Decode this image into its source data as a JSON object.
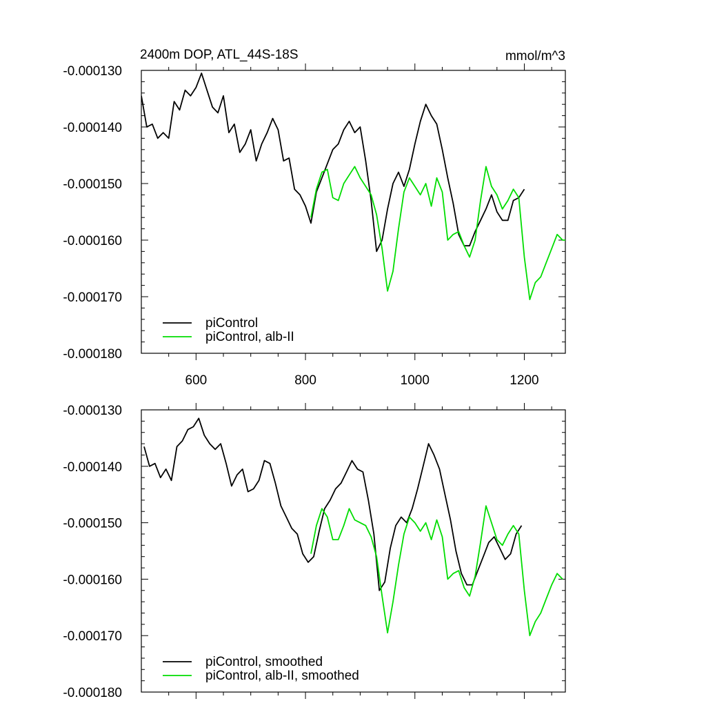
{
  "figure": {
    "title_left": "2400m DOP, ATL_44S-18S",
    "title_right": "mmol/m^3"
  },
  "chart_data": [
    {
      "type": "line",
      "panel": "top",
      "xlim": [
        500,
        1275
      ],
      "ylim": [
        -0.00018,
        -0.00013
      ],
      "x_ticks": [
        600,
        800,
        1000,
        1200
      ],
      "x_tick_labels": [
        "600",
        "800",
        "1000",
        "1200"
      ],
      "y_ticks": [
        -0.00013,
        -0.00014,
        -0.00015,
        -0.00016,
        -0.00017,
        -0.00018
      ],
      "y_tick_labels": [
        "-0.000130",
        "-0.000140",
        "-0.000150",
        "-0.000160",
        "-0.000170",
        "-0.000180"
      ],
      "grid": false,
      "legend_position": "bottom-left",
      "series": [
        {
          "name": "piControl",
          "color": "#000000",
          "x": [
            500,
            510,
            520,
            530,
            540,
            550,
            560,
            570,
            580,
            590,
            600,
            610,
            620,
            630,
            640,
            650,
            660,
            670,
            680,
            690,
            700,
            710,
            720,
            730,
            740,
            750,
            760,
            770,
            780,
            790,
            800,
            810,
            820,
            830,
            840,
            850,
            860,
            870,
            880,
            890,
            900,
            910,
            920,
            930,
            940,
            950,
            960,
            970,
            980,
            990,
            1000,
            1010,
            1020,
            1030,
            1040,
            1050,
            1060,
            1070,
            1080,
            1090,
            1100,
            1110,
            1120,
            1130,
            1140,
            1150,
            1160,
            1170,
            1180,
            1190,
            1200
          ],
          "y": [
            -0.0001345,
            -0.00014,
            -0.0001395,
            -0.000142,
            -0.000141,
            -0.000142,
            -0.0001355,
            -0.000137,
            -0.0001335,
            -0.0001345,
            -0.000133,
            -0.0001305,
            -0.0001335,
            -0.0001365,
            -0.0001375,
            -0.0001345,
            -0.000141,
            -0.0001395,
            -0.0001445,
            -0.000143,
            -0.0001405,
            -0.000146,
            -0.000143,
            -0.000141,
            -0.0001385,
            -0.0001405,
            -0.000146,
            -0.0001455,
            -0.000151,
            -0.000152,
            -0.000154,
            -0.000157,
            -0.0001515,
            -0.000149,
            -0.0001465,
            -0.000144,
            -0.000143,
            -0.0001405,
            -0.000139,
            -0.000141,
            -0.00014,
            -0.000146,
            -0.000153,
            -0.000162,
            -0.00016,
            -0.0001545,
            -0.00015,
            -0.000148,
            -0.0001505,
            -0.0001475,
            -0.000143,
            -0.000139,
            -0.000136,
            -0.000138,
            -0.0001395,
            -0.000144,
            -0.000149,
            -0.0001535,
            -0.000159,
            -0.000161,
            -0.000161,
            -0.0001585,
            -0.0001565,
            -0.0001545,
            -0.000152,
            -0.000155,
            -0.0001565,
            -0.0001565,
            -0.000153,
            -0.0001525,
            -0.000151
          ]
        },
        {
          "name": "piControl, alb-II",
          "color": "#00dd00",
          "x": [
            810,
            820,
            830,
            840,
            850,
            860,
            870,
            880,
            890,
            900,
            910,
            920,
            930,
            940,
            950,
            960,
            970,
            980,
            990,
            1000,
            1010,
            1020,
            1030,
            1040,
            1050,
            1060,
            1070,
            1080,
            1090,
            1100,
            1110,
            1120,
            1130,
            1140,
            1150,
            1160,
            1170,
            1180,
            1190,
            1200,
            1210,
            1220,
            1230,
            1240,
            1250,
            1260,
            1270,
            1275
          ],
          "y": [
            -0.000156,
            -0.000151,
            -0.000148,
            -0.0001475,
            -0.0001525,
            -0.000153,
            -0.00015,
            -0.0001485,
            -0.000147,
            -0.000149,
            -0.0001505,
            -0.000152,
            -0.0001555,
            -0.0001615,
            -0.000169,
            -0.0001655,
            -0.000158,
            -0.0001515,
            -0.000149,
            -0.0001505,
            -0.000152,
            -0.00015,
            -0.000154,
            -0.000149,
            -0.0001515,
            -0.00016,
            -0.000159,
            -0.0001585,
            -0.000161,
            -0.000163,
            -0.00016,
            -0.000153,
            -0.000147,
            -0.0001505,
            -0.000152,
            -0.0001545,
            -0.000153,
            -0.000151,
            -0.0001525,
            -0.000163,
            -0.0001705,
            -0.0001675,
            -0.0001665,
            -0.000164,
            -0.0001615,
            -0.000159,
            -0.00016,
            -0.00016
          ]
        }
      ]
    },
    {
      "type": "line",
      "panel": "bottom",
      "xlim": [
        500,
        1275
      ],
      "ylim": [
        -0.00018,
        -0.00013
      ],
      "x_ticks": [
        600,
        800,
        1000,
        1200
      ],
      "y_ticks": [
        -0.00013,
        -0.00014,
        -0.00015,
        -0.00016,
        -0.00017,
        -0.00018
      ],
      "y_tick_labels": [
        "-0.000130",
        "-0.000140",
        "-0.000150",
        "-0.000160",
        "-0.000170",
        "-0.000180"
      ],
      "grid": false,
      "legend_position": "bottom-left",
      "series": [
        {
          "name": "piControl, smoothed",
          "color": "#000000",
          "x": [
            505,
            515,
            525,
            535,
            545,
            555,
            565,
            575,
            585,
            595,
            605,
            615,
            625,
            635,
            645,
            655,
            665,
            675,
            685,
            695,
            705,
            715,
            725,
            735,
            745,
            755,
            765,
            775,
            785,
            795,
            805,
            815,
            825,
            835,
            845,
            855,
            865,
            875,
            885,
            895,
            905,
            915,
            925,
            935,
            945,
            955,
            965,
            975,
            985,
            995,
            1005,
            1015,
            1025,
            1035,
            1045,
            1055,
            1065,
            1075,
            1085,
            1095,
            1105,
            1115,
            1125,
            1135,
            1145,
            1155,
            1165,
            1175,
            1185,
            1195
          ],
          "y": [
            -0.0001365,
            -0.00014,
            -0.0001395,
            -0.000142,
            -0.0001405,
            -0.0001425,
            -0.0001365,
            -0.0001355,
            -0.0001335,
            -0.000133,
            -0.0001315,
            -0.0001345,
            -0.000136,
            -0.000137,
            -0.000136,
            -0.0001395,
            -0.0001435,
            -0.0001415,
            -0.0001405,
            -0.0001445,
            -0.000144,
            -0.0001425,
            -0.000139,
            -0.0001395,
            -0.000143,
            -0.000147,
            -0.000149,
            -0.000151,
            -0.000152,
            -0.0001555,
            -0.000157,
            -0.000156,
            -0.0001515,
            -0.0001475,
            -0.000146,
            -0.000144,
            -0.000143,
            -0.000141,
            -0.000139,
            -0.0001405,
            -0.000141,
            -0.000146,
            -0.000152,
            -0.000162,
            -0.0001605,
            -0.0001545,
            -0.0001505,
            -0.000149,
            -0.00015,
            -0.0001475,
            -0.000144,
            -0.00014,
            -0.000136,
            -0.000138,
            -0.0001405,
            -0.000145,
            -0.0001495,
            -0.000155,
            -0.000159,
            -0.000161,
            -0.000161,
            -0.0001585,
            -0.000156,
            -0.0001535,
            -0.0001525,
            -0.0001545,
            -0.0001565,
            -0.0001555,
            -0.000152,
            -0.0001505
          ]
        },
        {
          "name": "piControl, alb-II, smoothed",
          "color": "#00dd00",
          "x": [
            810,
            820,
            830,
            840,
            850,
            860,
            870,
            880,
            890,
            900,
            910,
            920,
            930,
            940,
            950,
            960,
            970,
            980,
            990,
            1000,
            1010,
            1020,
            1030,
            1040,
            1050,
            1060,
            1070,
            1080,
            1090,
            1100,
            1110,
            1120,
            1130,
            1140,
            1150,
            1160,
            1170,
            1180,
            1190,
            1200,
            1210,
            1220,
            1230,
            1240,
            1250,
            1260,
            1270
          ],
          "y": [
            -0.0001555,
            -0.0001505,
            -0.0001475,
            -0.000149,
            -0.000153,
            -0.000153,
            -0.0001505,
            -0.0001475,
            -0.0001495,
            -0.00015,
            -0.0001505,
            -0.0001525,
            -0.000156,
            -0.000163,
            -0.0001695,
            -0.000164,
            -0.0001575,
            -0.000152,
            -0.000149,
            -0.00015,
            -0.0001515,
            -0.00015,
            -0.000153,
            -0.0001495,
            -0.0001525,
            -0.00016,
            -0.000159,
            -0.0001585,
            -0.0001615,
            -0.000163,
            -0.0001595,
            -0.0001535,
            -0.000147,
            -0.00015,
            -0.000153,
            -0.000154,
            -0.000152,
            -0.0001505,
            -0.000152,
            -0.000162,
            -0.00017,
            -0.0001675,
            -0.000166,
            -0.0001635,
            -0.000161,
            -0.000159,
            -0.00016
          ]
        }
      ]
    }
  ]
}
